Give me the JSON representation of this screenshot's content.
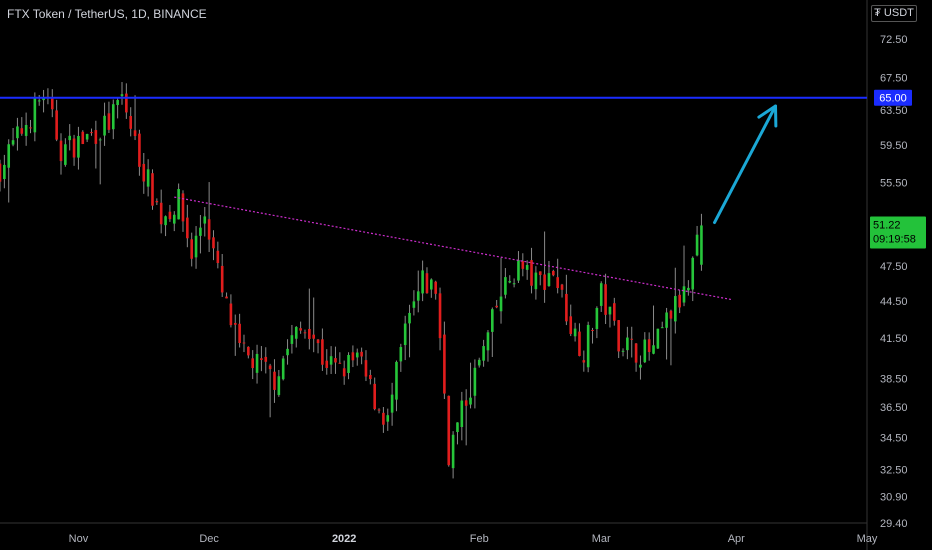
{
  "header": {
    "title": "FTX Token / TetherUS, 1D, BINANCE",
    "currency": "USDT",
    "currency_icon": "dollar-sign-icon"
  },
  "colors": {
    "background": "#000000",
    "up": "#26c63a",
    "down": "#e11d1d",
    "resistance": "#1a2cff",
    "trendline": "#cc2dcc",
    "arrow": "#1ba8d6",
    "price_tag": "#23c23a"
  },
  "chart_data": {
    "type": "candlestick",
    "symbol": "FTX Token / TetherUS",
    "interval": "1D",
    "exchange": "BINANCE",
    "y_scale": "log",
    "ylim": [
      29.4,
      78
    ],
    "y_ticks": [
      72.5,
      67.5,
      63.5,
      59.5,
      55.5,
      47.5,
      44.5,
      41.5,
      38.5,
      36.5,
      34.5,
      32.5,
      30.9,
      29.4
    ],
    "y_tick_labels": [
      "72.50",
      "67.50",
      "63.50",
      "59.50",
      "55.50",
      "47.50",
      "44.50",
      "41.50",
      "38.50",
      "36.50",
      "34.50",
      "32.50",
      "30.90",
      "29.40"
    ],
    "x_ticks": [
      {
        "label": "Nov",
        "date": "2021-11-01",
        "bold": false
      },
      {
        "label": "Dec",
        "date": "2021-12-01",
        "bold": false
      },
      {
        "label": "2022",
        "date": "2022-01-01",
        "bold": true
      },
      {
        "label": "Feb",
        "date": "2022-02-01",
        "bold": false
      },
      {
        "label": "Mar",
        "date": "2022-03-01",
        "bold": false
      },
      {
        "label": "Apr",
        "date": "2022-04-01",
        "bold": false
      },
      {
        "label": "May",
        "date": "2022-05-01",
        "bold": false
      }
    ],
    "xlim": [
      "2021-10-14",
      "2022-05-01"
    ],
    "close_path": [
      [
        "2021-10-14",
        57.0
      ],
      [
        "2021-10-20",
        62.0
      ],
      [
        "2021-10-24",
        65.5
      ],
      [
        "2021-10-28",
        59.0
      ],
      [
        "2021-11-02",
        60.0
      ],
      [
        "2021-11-08",
        62.0
      ],
      [
        "2021-11-11",
        65.0
      ],
      [
        "2021-11-15",
        58.0
      ],
      [
        "2021-11-20",
        52.0
      ],
      [
        "2021-11-24",
        53.5
      ],
      [
        "2021-11-27",
        48.5
      ],
      [
        "2021-11-30",
        52.5
      ],
      [
        "2021-12-04",
        45.0
      ],
      [
        "2021-12-08",
        40.5
      ],
      [
        "2021-12-12",
        39.5
      ],
      [
        "2021-12-16",
        38.5
      ],
      [
        "2021-12-20",
        41.5
      ],
      [
        "2021-12-24",
        42.5
      ],
      [
        "2021-12-27",
        40.0
      ],
      [
        "2021-12-31",
        39.0
      ],
      [
        "2022-01-04",
        40.0
      ],
      [
        "2022-01-08",
        37.0
      ],
      [
        "2022-01-11",
        35.5
      ],
      [
        "2022-01-15",
        42.0
      ],
      [
        "2022-01-19",
        46.0
      ],
      [
        "2022-01-22",
        45.5
      ],
      [
        "2022-01-25",
        33.5
      ],
      [
        "2022-01-29",
        37.0
      ],
      [
        "2022-02-02",
        40.5
      ],
      [
        "2022-02-06",
        45.0
      ],
      [
        "2022-02-10",
        47.5
      ],
      [
        "2022-02-14",
        46.0
      ],
      [
        "2022-02-18",
        47.0
      ],
      [
        "2022-02-22",
        42.5
      ],
      [
        "2022-02-25",
        40.5
      ],
      [
        "2022-03-01",
        45.0
      ],
      [
        "2022-03-05",
        41.5
      ],
      [
        "2022-03-09",
        40.5
      ],
      [
        "2022-03-13",
        40.5
      ],
      [
        "2022-03-17",
        43.5
      ],
      [
        "2022-03-21",
        45.5
      ],
      [
        "2022-03-24",
        51.22
      ]
    ],
    "last_price": 51.22,
    "last_price_label": "51.22",
    "countdown": "09:19:58",
    "resistance": {
      "price": 65.0,
      "label": "65.00"
    },
    "trendline": {
      "start": [
        "2021-11-23",
        54.0
      ],
      "end": [
        "2022-03-31",
        44.6
      ]
    },
    "projection_arrow": {
      "start": [
        "2022-03-27",
        51.5
      ],
      "end": [
        "2022-04-10",
        64.0
      ]
    }
  }
}
